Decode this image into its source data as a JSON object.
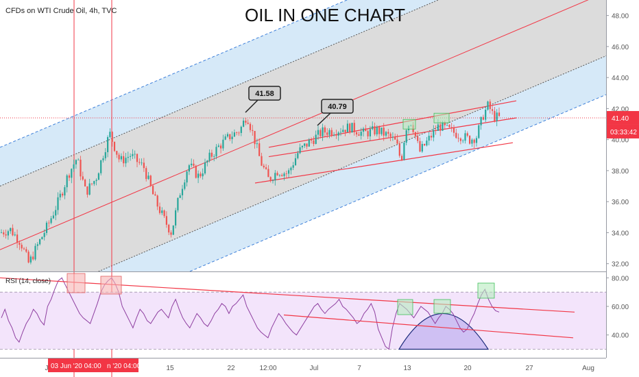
{
  "chart_data": {
    "type": "candlestick",
    "title": "OIL IN ONE CHART",
    "symbol_label": "CFDs on WTI Crude Oil, 4h, TVC",
    "price_axis": {
      "range": [
        31.5,
        49.0
      ],
      "ticks": [
        "48.00",
        "46.00",
        "44.00",
        "42.00",
        "40.00",
        "38.00",
        "36.00",
        "34.00",
        "32.00"
      ],
      "tick_values": [
        48,
        46,
        44,
        42,
        40,
        38,
        36,
        34,
        32
      ]
    },
    "current_price": {
      "value": 41.4,
      "label": "41.40",
      "countdown": "03:33:42"
    },
    "annotations": [
      {
        "label": "41.58",
        "price": 41.58
      },
      {
        "label": "40.79",
        "price": 40.79
      }
    ],
    "rsi": {
      "label": "RSI (14, close)",
      "range": [
        24,
        84
      ],
      "ticks": [
        "80.00",
        "60.00",
        "40.00"
      ],
      "tick_values": [
        80,
        60,
        40
      ],
      "band": [
        30,
        70
      ],
      "values": [
        52,
        58,
        50,
        45,
        38,
        35,
        42,
        48,
        52,
        58,
        55,
        50,
        47,
        60,
        65,
        72,
        78,
        80,
        75,
        70,
        65,
        60,
        55,
        52,
        50,
        48,
        55,
        62,
        70,
        75,
        78,
        80,
        76,
        70,
        60,
        55,
        50,
        45,
        52,
        58,
        55,
        50,
        48,
        52,
        56,
        58,
        55,
        52,
        60,
        65,
        58,
        52,
        48,
        45,
        50,
        55,
        52,
        48,
        46,
        50,
        55,
        58,
        62,
        60,
        55,
        60,
        62,
        65,
        68,
        60,
        55,
        50,
        45,
        42,
        40,
        38,
        45,
        50,
        55,
        52,
        48,
        45,
        42,
        40,
        44,
        48,
        52,
        56,
        60,
        62,
        58,
        55,
        58,
        60,
        62,
        65,
        60,
        58,
        55,
        52,
        48,
        50,
        55,
        58,
        62,
        56,
        44,
        38,
        32,
        30,
        45,
        55,
        62,
        60,
        58,
        55,
        52,
        56,
        60,
        58,
        56,
        52,
        48,
        52,
        55,
        60,
        58,
        55,
        50,
        45,
        42,
        44,
        50,
        55,
        62,
        68,
        72,
        65,
        60,
        57,
        56
      ]
    },
    "time_axis": {
      "ticks": [
        "J",
        "15",
        "22",
        "12:00",
        "Jul",
        "7",
        "13",
        "20",
        "27",
        "Aug"
      ],
      "highlighted": [
        "03 Jun '20  04:00",
        "n '20  04:00"
      ]
    },
    "colors": {
      "up": "#26a69a",
      "down": "#ef5350",
      "trend": "#f23645",
      "channel_fill": "#dcdcdc",
      "outer_fill": "#d6e9f8",
      "rsi_line": "#8e3fa0",
      "rsi_band": "#f3e4fb"
    }
  }
}
